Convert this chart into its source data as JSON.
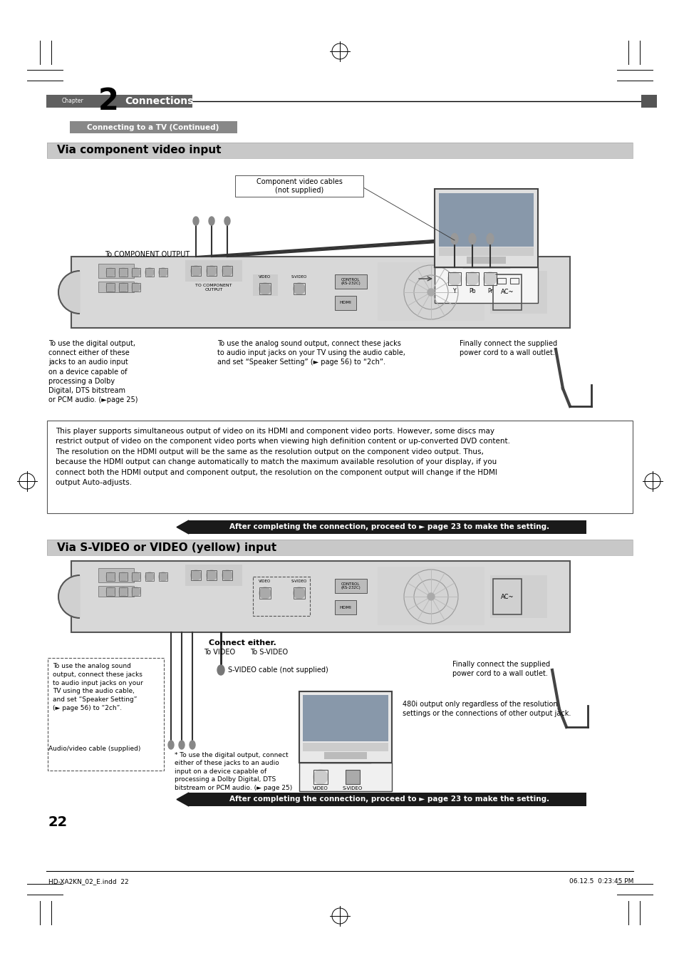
{
  "page_width": 9.54,
  "page_height": 13.51,
  "bg_color": "#ffffff",
  "chapter_bar_color": "#606060",
  "chapter_text": "Connections",
  "chapter_num": "2",
  "subtitle_text": "Connecting to a TV (Continued)",
  "subtitle_bar_color": "#888888",
  "section1_title": "Via component video input",
  "section1_bg": "#cccccc",
  "section2_title": "Via S-VIDEO or VIDEO (yellow) input",
  "section2_bg": "#cccccc",
  "notice_bar_color": "#1a1a1a",
  "notice_text": "After completing the connection, proceed to ► page 23 to make the setting.",
  "notice_text_color": "#ffffff",
  "info_box_text": "This player supports simultaneous output of video on its HDMI and component video ports. However, some discs may\nrestrict output of video on the component video ports when viewing high definition content or up-converted DVD content.\nThe resolution on the HDMI output will be the same as the resolution output on the component video output. Thus,\nbecause the HDMI output can change automatically to match the maximum available resolution of your display, if you\nconnect both the HDMI output and component output, the resolution on the component output will change if the HDMI\noutput Auto-adjusts.",
  "page_number": "22",
  "footer_left": "HD-XA2KN_02_E.indd  22",
  "footer_right": "06.12.5  0:23:45 PM",
  "caption1_text": "Component video cables\n(not supplied)",
  "caption2_text": "To COMPONENT OUTPUT",
  "caption3_text": "To use the digital output,\nconnect either of these\njacks to an audio input\non a device capable of\nprocessing a Dolby\nDigital, DTS bitstream\nor PCM audio. (►page 25)",
  "caption4_text": "To use the analog sound output, connect these jacks\nto audio input jacks on your TV using the audio cable,\nand set “Speaker Setting” (► page 56) to “2ch”.",
  "caption5_text": "Finally connect the supplied\npower cord to a wall outlet.",
  "caption7_text": "To use the analog sound\noutput, connect these jacks\nto audio input jacks on your\nTV using the audio cable,\nand set “Speaker Setting”\n(► page 56) to “2ch”.",
  "caption8_text": "S-VIDEO cable (not supplied)",
  "caption9_text": "Audio/video cable (supplied)",
  "caption10_text": "Finally connect the supplied\npower cord to a wall outlet.",
  "caption11_text": "480i output only regardless of the resolution\nsettings or the connections of other output jack.",
  "caption12_text": "* To use the digital output, connect\neither of these jacks to an audio\ninput on a device capable of\nprocessing a Dolby Digital, DTS\nbitstream or PCM audio. (► page 25)",
  "connect_either": "Connect either.",
  "to_video": "To VIDEO",
  "to_svideo": "To S-VIDEO"
}
